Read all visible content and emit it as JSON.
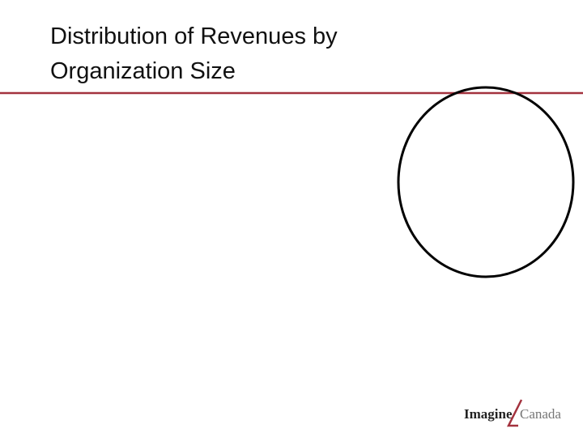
{
  "header": {
    "title_lines": [
      "Distribution of Revenues by",
      "Organization Size"
    ]
  },
  "logo": {
    "left": "Imagine",
    "right": "Canada"
  }
}
